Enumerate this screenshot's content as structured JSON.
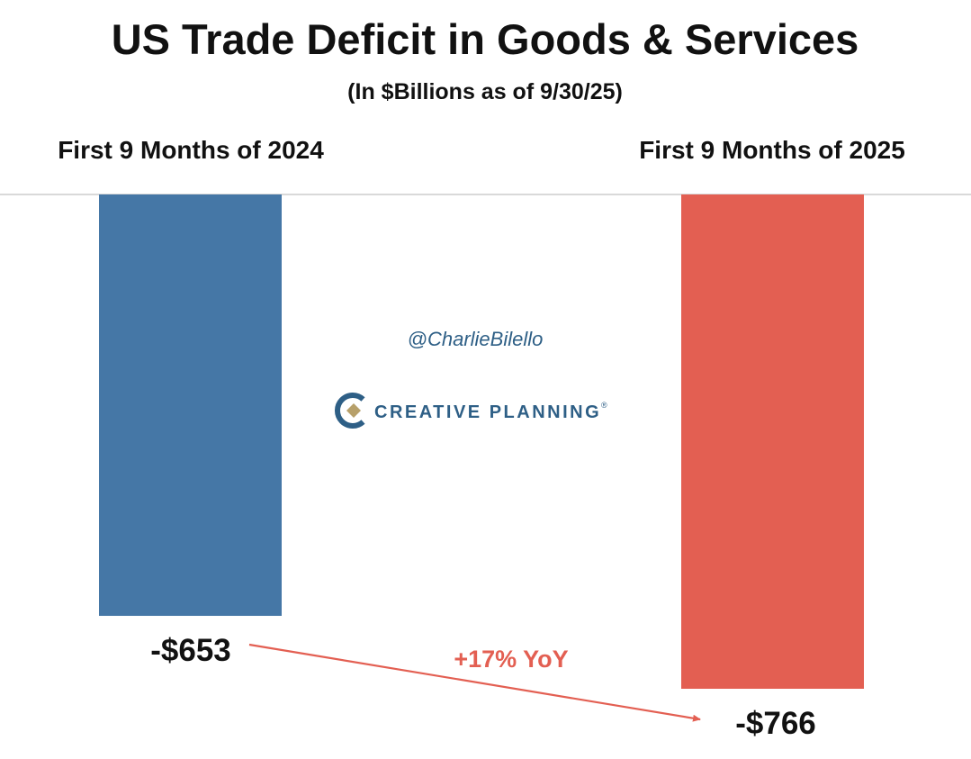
{
  "chart_data": {
    "type": "bar",
    "title": "US Trade Deficit in Goods & Services",
    "subtitle": "(In $Billions as of 9/30/25)",
    "categories": [
      "First 9 Months of 2024",
      "First 9 Months of 2025"
    ],
    "values": [
      -653,
      -766
    ],
    "value_labels": [
      "-$653",
      "-$766"
    ],
    "bar_colors": [
      "#4577a6",
      "#e35f52"
    ],
    "ylim": [
      -766,
      0
    ],
    "annotation": {
      "text": "+17% YoY",
      "color": "#e35f52"
    },
    "watermark": {
      "handle": "@CharlieBilello",
      "brand": "CREATIVE PLANNING",
      "brand_mark": "®",
      "color": "#2e5f86"
    },
    "grid": false
  }
}
